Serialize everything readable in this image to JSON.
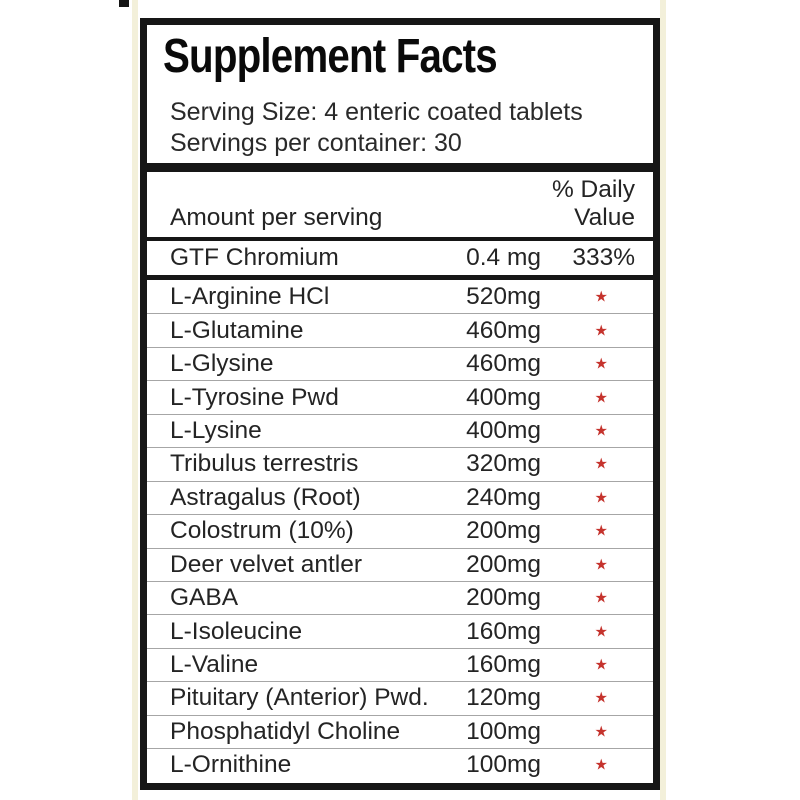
{
  "colors": {
    "background": "#ffffff",
    "panel_border": "#161616",
    "text": "#242424",
    "row_separator": "#a6a6a6",
    "asterisk_red": "#c5332d",
    "label_edge_cream": "#f3f0da"
  },
  "panel": {
    "title": "Supplement Facts",
    "serving_size": "Serving Size: 4 enteric coated tablets",
    "servings_per_container": "Servings per container: 30",
    "header": {
      "amount_label": "Amount per serving",
      "daily_value_line1": "% Daily",
      "daily_value_line2": "Value"
    },
    "primary_row": {
      "name": "GTF Chromium",
      "amount": "0.4 mg",
      "daily_value": "333%"
    },
    "rows": [
      {
        "name": "L-Arginine HCl",
        "amount": "520mg",
        "daily_value": "★"
      },
      {
        "name": "L-Glutamine",
        "amount": "460mg",
        "daily_value": "★"
      },
      {
        "name": "L-Glysine",
        "amount": "460mg",
        "daily_value": "★"
      },
      {
        "name": "L-Tyrosine Pwd",
        "amount": "400mg",
        "daily_value": "★"
      },
      {
        "name": "L-Lysine",
        "amount": "400mg",
        "daily_value": "★"
      },
      {
        "name": "Tribulus terrestris",
        "amount": "320mg",
        "daily_value": "★"
      },
      {
        "name": "Astragalus (Root)",
        "amount": "240mg",
        "daily_value": "★"
      },
      {
        "name": "Colostrum (10%)",
        "amount": "200mg",
        "daily_value": "★"
      },
      {
        "name": "Deer velvet antler",
        "amount": "200mg",
        "daily_value": "★"
      },
      {
        "name": "GABA",
        "amount": "200mg",
        "daily_value": "★"
      },
      {
        "name": "L-Isoleucine",
        "amount": "160mg",
        "daily_value": "★"
      },
      {
        "name": "L-Valine",
        "amount": "160mg",
        "daily_value": "★"
      },
      {
        "name": "Pituitary (Anterior) Pwd.",
        "amount": "120mg",
        "daily_value": "★"
      },
      {
        "name": "Phosphatidyl Choline",
        "amount": "100mg",
        "daily_value": "★"
      },
      {
        "name": "L-Ornithine",
        "amount": "100mg",
        "daily_value": "★"
      }
    ]
  }
}
